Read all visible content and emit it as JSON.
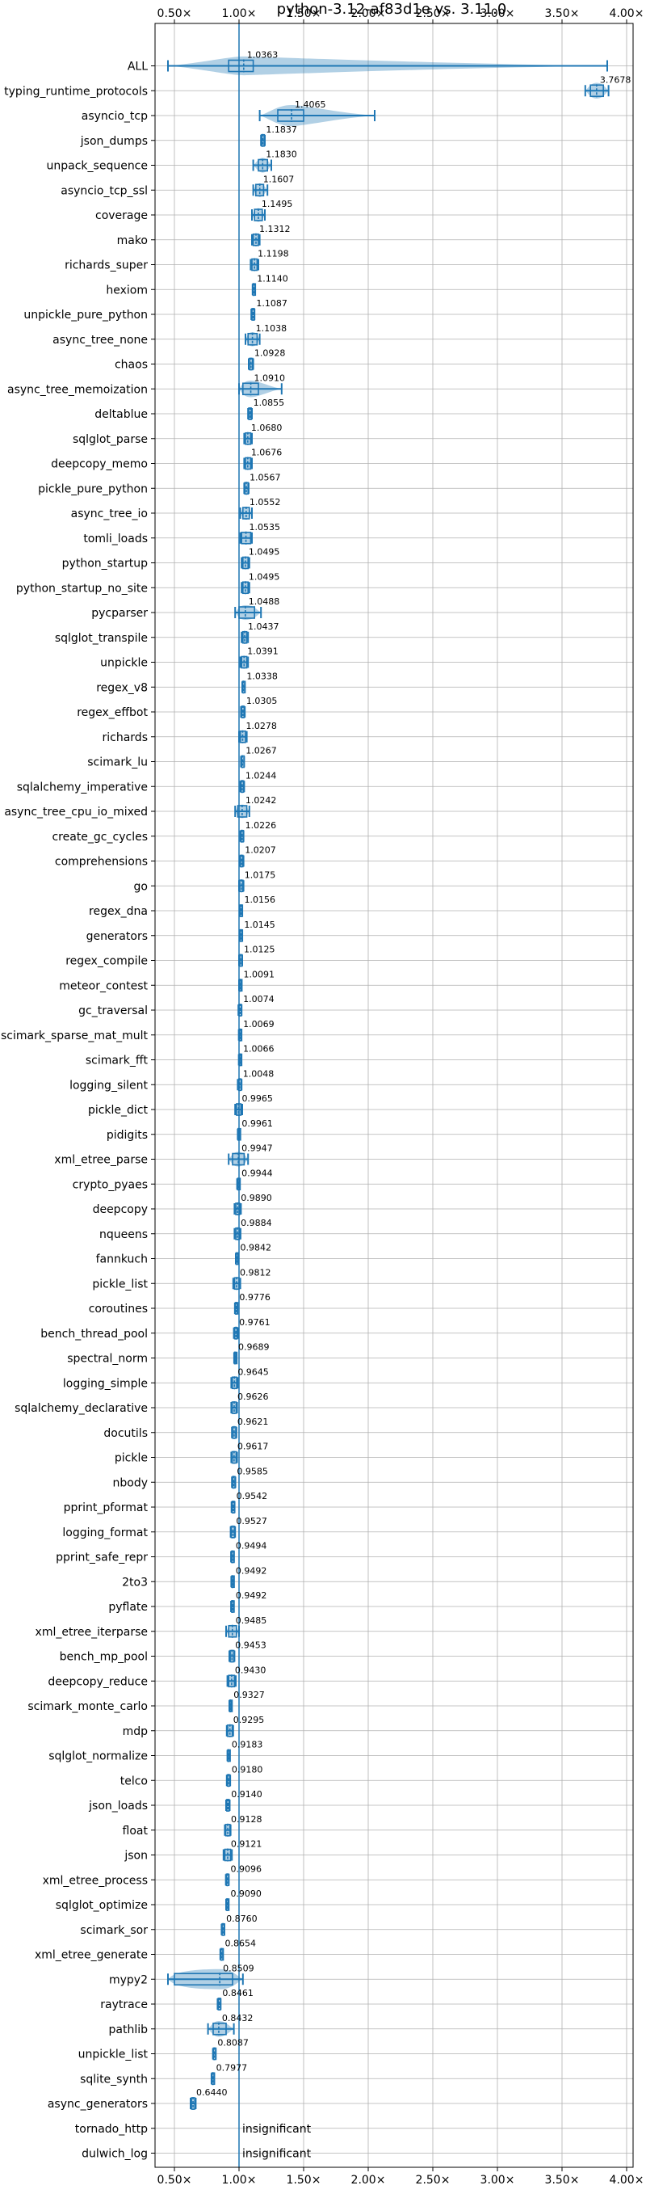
{
  "chart_data": {
    "type": "violin",
    "title": "python-3.12-af83d1e vs. 3.11.0",
    "xlabel": "",
    "ylabel": "",
    "xlim": [
      0.35,
      4.05
    ],
    "xticks": [
      0.5,
      1.0,
      1.5,
      2.0,
      2.5,
      3.0,
      3.5,
      4.0
    ],
    "xtick_labels": [
      "0.50×",
      "1.00×",
      "1.50×",
      "2.00×",
      "2.50×",
      "3.00×",
      "3.50×",
      "4.00×"
    ],
    "reference_line": 1.0,
    "grid": true,
    "insignificant_text": "insignificant",
    "benchmarks": [
      {
        "name": "ALL",
        "label": "1.0363",
        "value": 1.0363,
        "lo": 0.45,
        "hi": 3.85,
        "q1": 0.92,
        "q3": 1.11,
        "spread": 0.18
      },
      {
        "name": "typing_runtime_protocols",
        "label": "3.7678",
        "value": 3.7678,
        "lo": 3.68,
        "hi": 3.86,
        "q1": 3.72,
        "q3": 3.82,
        "spread": 0.1
      },
      {
        "name": "asyncio_tcp",
        "label": "1.4065",
        "value": 1.4065,
        "lo": 1.16,
        "hi": 2.05,
        "q1": 1.3,
        "q3": 1.5,
        "spread": 0.28
      },
      {
        "name": "json_dumps",
        "label": "1.1837",
        "value": 1.1837,
        "lo": 1.17,
        "hi": 1.2,
        "q1": 1.175,
        "q3": 1.195,
        "spread": 0.02
      },
      {
        "name": "unpack_sequence",
        "label": "1.1830",
        "value": 1.183,
        "lo": 1.11,
        "hi": 1.25,
        "q1": 1.15,
        "q3": 1.22,
        "spread": 0.08
      },
      {
        "name": "asyncio_tcp_ssl",
        "label": "1.1607",
        "value": 1.1607,
        "lo": 1.11,
        "hi": 1.22,
        "q1": 1.13,
        "q3": 1.19,
        "spread": 0.06
      },
      {
        "name": "coverage",
        "label": "1.1495",
        "value": 1.1495,
        "lo": 1.1,
        "hi": 1.2,
        "q1": 1.12,
        "q3": 1.18,
        "spread": 0.06
      },
      {
        "name": "mako",
        "label": "1.1312",
        "value": 1.1312,
        "lo": 1.1,
        "hi": 1.16,
        "q1": 1.11,
        "q3": 1.15,
        "spread": 0.04
      },
      {
        "name": "richards_super",
        "label": "1.1198",
        "value": 1.1198,
        "lo": 1.09,
        "hi": 1.15,
        "q1": 1.1,
        "q3": 1.14,
        "spread": 0.04
      },
      {
        "name": "hexiom",
        "label": "1.1140",
        "value": 1.114,
        "lo": 1.105,
        "hi": 1.125,
        "q1": 1.108,
        "q3": 1.12,
        "spread": 0.015
      },
      {
        "name": "unpickle_pure_python",
        "label": "1.1087",
        "value": 1.1087,
        "lo": 1.095,
        "hi": 1.12,
        "q1": 1.1,
        "q3": 1.117,
        "spread": 0.02
      },
      {
        "name": "async_tree_none",
        "label": "1.1038",
        "value": 1.1038,
        "lo": 1.05,
        "hi": 1.16,
        "q1": 1.07,
        "q3": 1.14,
        "spread": 0.07
      },
      {
        "name": "chaos",
        "label": "1.0928",
        "value": 1.0928,
        "lo": 1.075,
        "hi": 1.11,
        "q1": 1.08,
        "q3": 1.105,
        "spread": 0.025
      },
      {
        "name": "async_tree_memoization",
        "label": "1.0910",
        "value": 1.091,
        "lo": 1.0,
        "hi": 1.33,
        "q1": 1.03,
        "q3": 1.15,
        "spread": 0.12
      },
      {
        "name": "deltablue",
        "label": "1.0855",
        "value": 1.0855,
        "lo": 1.07,
        "hi": 1.1,
        "q1": 1.075,
        "q3": 1.095,
        "spread": 0.02
      },
      {
        "name": "sqlglot_parse",
        "label": "1.0680",
        "value": 1.068,
        "lo": 1.04,
        "hi": 1.1,
        "q1": 1.05,
        "q3": 1.09,
        "spread": 0.04
      },
      {
        "name": "deepcopy_memo",
        "label": "1.0676",
        "value": 1.0676,
        "lo": 1.04,
        "hi": 1.1,
        "q1": 1.05,
        "q3": 1.09,
        "spread": 0.04
      },
      {
        "name": "pickle_pure_python",
        "label": "1.0567",
        "value": 1.0567,
        "lo": 1.04,
        "hi": 1.075,
        "q1": 1.045,
        "q3": 1.07,
        "spread": 0.025
      },
      {
        "name": "async_tree_io",
        "label": "1.0552",
        "value": 1.0552,
        "lo": 1.01,
        "hi": 1.1,
        "q1": 1.03,
        "q3": 1.08,
        "spread": 0.05
      },
      {
        "name": "tomli_loads",
        "label": "1.0535",
        "value": 1.0535,
        "lo": 1.01,
        "hi": 1.1,
        "q1": 1.02,
        "q3": 1.09,
        "spread": 0.05
      },
      {
        "name": "python_startup",
        "label": "1.0495",
        "value": 1.0495,
        "lo": 1.02,
        "hi": 1.08,
        "q1": 1.03,
        "q3": 1.07,
        "spread": 0.04
      },
      {
        "name": "python_startup_no_site",
        "label": "1.0495",
        "value": 1.0495,
        "lo": 1.02,
        "hi": 1.08,
        "q1": 1.03,
        "q3": 1.07,
        "spread": 0.04
      },
      {
        "name": "pycparser",
        "label": "1.0488",
        "value": 1.0488,
        "lo": 0.97,
        "hi": 1.17,
        "q1": 1.0,
        "q3": 1.12,
        "spread": 0.08
      },
      {
        "name": "sqlglot_transpile",
        "label": "1.0437",
        "value": 1.0437,
        "lo": 1.02,
        "hi": 1.07,
        "q1": 1.03,
        "q3": 1.06,
        "spread": 0.03
      },
      {
        "name": "unpickle",
        "label": "1.0391",
        "value": 1.0391,
        "lo": 1.01,
        "hi": 1.07,
        "q1": 1.02,
        "q3": 1.06,
        "spread": 0.035
      },
      {
        "name": "regex_v8",
        "label": "1.0338",
        "value": 1.0338,
        "lo": 1.025,
        "hi": 1.045,
        "q1": 1.028,
        "q3": 1.04,
        "spread": 0.01
      },
      {
        "name": "regex_effbot",
        "label": "1.0305",
        "value": 1.0305,
        "lo": 1.015,
        "hi": 1.045,
        "q1": 1.02,
        "q3": 1.04,
        "spread": 0.02
      },
      {
        "name": "richards",
        "label": "1.0278",
        "value": 1.0278,
        "lo": 1.0,
        "hi": 1.06,
        "q1": 1.01,
        "q3": 1.05,
        "spread": 0.035
      },
      {
        "name": "scimark_lu",
        "label": "1.0267",
        "value": 1.0267,
        "lo": 1.015,
        "hi": 1.04,
        "q1": 1.02,
        "q3": 1.035,
        "spread": 0.015
      },
      {
        "name": "sqlalchemy_imperative",
        "label": "1.0244",
        "value": 1.0244,
        "lo": 1.01,
        "hi": 1.04,
        "q1": 1.015,
        "q3": 1.035,
        "spread": 0.015
      },
      {
        "name": "async_tree_cpu_io_mixed",
        "label": "1.0242",
        "value": 1.0242,
        "lo": 0.97,
        "hi": 1.08,
        "q1": 0.99,
        "q3": 1.06,
        "spread": 0.06
      },
      {
        "name": "create_gc_cycles",
        "label": "1.0226",
        "value": 1.0226,
        "lo": 1.01,
        "hi": 1.035,
        "q1": 1.015,
        "q3": 1.03,
        "spread": 0.015
      },
      {
        "name": "comprehensions",
        "label": "1.0207",
        "value": 1.0207,
        "lo": 1.005,
        "hi": 1.035,
        "q1": 1.01,
        "q3": 1.03,
        "spread": 0.015
      },
      {
        "name": "go",
        "label": "1.0175",
        "value": 1.0175,
        "lo": 1.0,
        "hi": 1.035,
        "q1": 1.005,
        "q3": 1.03,
        "spread": 0.02
      },
      {
        "name": "regex_dna",
        "label": "1.0156",
        "value": 1.0156,
        "lo": 1.005,
        "hi": 1.025,
        "q1": 1.008,
        "q3": 1.022,
        "spread": 0.01
      },
      {
        "name": "generators",
        "label": "1.0145",
        "value": 1.0145,
        "lo": 1.005,
        "hi": 1.025,
        "q1": 1.008,
        "q3": 1.02,
        "spread": 0.01
      },
      {
        "name": "regex_compile",
        "label": "1.0125",
        "value": 1.0125,
        "lo": 1.0,
        "hi": 1.025,
        "q1": 1.005,
        "q3": 1.02,
        "spread": 0.012
      },
      {
        "name": "meteor_contest",
        "label": "1.0091",
        "value": 1.0091,
        "lo": 1.0,
        "hi": 1.018,
        "q1": 1.004,
        "q3": 1.014,
        "spread": 0.008
      },
      {
        "name": "gc_traversal",
        "label": "1.0074",
        "value": 1.0074,
        "lo": 0.995,
        "hi": 1.02,
        "q1": 1.0,
        "q3": 1.015,
        "spread": 0.012
      },
      {
        "name": "scimark_sparse_mat_mult",
        "label": "1.0069",
        "value": 1.0069,
        "lo": 0.998,
        "hi": 1.016,
        "q1": 1.002,
        "q3": 1.012,
        "spread": 0.008
      },
      {
        "name": "scimark_fft",
        "label": "1.0066",
        "value": 1.0066,
        "lo": 0.998,
        "hi": 1.015,
        "q1": 1.002,
        "q3": 1.012,
        "spread": 0.008
      },
      {
        "name": "logging_silent",
        "label": "1.0048",
        "value": 1.0048,
        "lo": 0.99,
        "hi": 1.02,
        "q1": 0.998,
        "q3": 1.012,
        "spread": 0.012
      },
      {
        "name": "pickle_dict",
        "label": "0.9965",
        "value": 0.9965,
        "lo": 0.97,
        "hi": 1.025,
        "q1": 0.98,
        "q3": 1.015,
        "spread": 0.025
      },
      {
        "name": "pidigits",
        "label": "0.9961",
        "value": 0.9961,
        "lo": 0.99,
        "hi": 1.003,
        "q1": 0.993,
        "q3": 1.0,
        "spread": 0.005
      },
      {
        "name": "xml_etree_parse",
        "label": "0.9947",
        "value": 0.9947,
        "lo": 0.92,
        "hi": 1.07,
        "q1": 0.95,
        "q3": 1.04,
        "spread": 0.08
      },
      {
        "name": "crypto_pyaes",
        "label": "0.9944",
        "value": 0.9944,
        "lo": 0.985,
        "hi": 1.005,
        "q1": 0.99,
        "q3": 1.0,
        "spread": 0.008
      },
      {
        "name": "deepcopy",
        "label": "0.9890",
        "value": 0.989,
        "lo": 0.965,
        "hi": 1.015,
        "q1": 0.975,
        "q3": 1.005,
        "spread": 0.02
      },
      {
        "name": "nqueens",
        "label": "0.9884",
        "value": 0.9884,
        "lo": 0.965,
        "hi": 1.012,
        "q1": 0.975,
        "q3": 1.003,
        "spread": 0.02
      },
      {
        "name": "fannkuch",
        "label": "0.9842",
        "value": 0.9842,
        "lo": 0.975,
        "hi": 0.993,
        "q1": 0.978,
        "q3": 0.99,
        "spread": 0.008
      },
      {
        "name": "pickle_list",
        "label": "0.9812",
        "value": 0.9812,
        "lo": 0.955,
        "hi": 1.01,
        "q1": 0.965,
        "q3": 1.0,
        "spread": 0.025
      },
      {
        "name": "coroutines",
        "label": "0.9776",
        "value": 0.9776,
        "lo": 0.968,
        "hi": 0.988,
        "q1": 0.972,
        "q3": 0.984,
        "spread": 0.008
      },
      {
        "name": "bench_thread_pool",
        "label": "0.9761",
        "value": 0.9761,
        "lo": 0.96,
        "hi": 0.992,
        "q1": 0.966,
        "q3": 0.986,
        "spread": 0.015
      },
      {
        "name": "spectral_norm",
        "label": "0.9689",
        "value": 0.9689,
        "lo": 0.962,
        "hi": 0.976,
        "q1": 0.965,
        "q3": 0.973,
        "spread": 0.006
      },
      {
        "name": "logging_simple",
        "label": "0.9645",
        "value": 0.9645,
        "lo": 0.94,
        "hi": 0.99,
        "q1": 0.948,
        "q3": 0.982,
        "spread": 0.025
      },
      {
        "name": "sqlalchemy_declarative",
        "label": "0.9626",
        "value": 0.9626,
        "lo": 0.94,
        "hi": 0.985,
        "q1": 0.947,
        "q3": 0.978,
        "spread": 0.02
      },
      {
        "name": "docutils",
        "label": "0.9621",
        "value": 0.9621,
        "lo": 0.945,
        "hi": 0.98,
        "q1": 0.95,
        "q3": 0.975,
        "spread": 0.015
      },
      {
        "name": "pickle",
        "label": "0.9617",
        "value": 0.9617,
        "lo": 0.94,
        "hi": 0.985,
        "q1": 0.947,
        "q3": 0.978,
        "spread": 0.02
      },
      {
        "name": "nbody",
        "label": "0.9585",
        "value": 0.9585,
        "lo": 0.945,
        "hi": 0.972,
        "q1": 0.95,
        "q3": 0.967,
        "spread": 0.012
      },
      {
        "name": "pprint_pformat",
        "label": "0.9542",
        "value": 0.9542,
        "lo": 0.942,
        "hi": 0.966,
        "q1": 0.947,
        "q3": 0.962,
        "spread": 0.01
      },
      {
        "name": "logging_format",
        "label": "0.9527",
        "value": 0.9527,
        "lo": 0.935,
        "hi": 0.97,
        "q1": 0.94,
        "q3": 0.965,
        "spread": 0.015
      },
      {
        "name": "pprint_safe_repr",
        "label": "0.9494",
        "value": 0.9494,
        "lo": 0.938,
        "hi": 0.961,
        "q1": 0.943,
        "q3": 0.957,
        "spread": 0.01
      },
      {
        "name": "2to3",
        "label": "0.9492",
        "value": 0.9492,
        "lo": 0.94,
        "hi": 0.958,
        "q1": 0.944,
        "q3": 0.955,
        "spread": 0.008
      },
      {
        "name": "pyflate",
        "label": "0.9492",
        "value": 0.9492,
        "lo": 0.938,
        "hi": 0.96,
        "q1": 0.943,
        "q3": 0.956,
        "spread": 0.01
      },
      {
        "name": "xml_etree_iterparse",
        "label": "0.9485",
        "value": 0.9485,
        "lo": 0.9,
        "hi": 1.0,
        "q1": 0.92,
        "q3": 0.98,
        "spread": 0.05
      },
      {
        "name": "bench_mp_pool",
        "label": "0.9453",
        "value": 0.9453,
        "lo": 0.925,
        "hi": 0.965,
        "q1": 0.932,
        "q3": 0.96,
        "spread": 0.02
      },
      {
        "name": "deepcopy_reduce",
        "label": "0.9430",
        "value": 0.943,
        "lo": 0.91,
        "hi": 0.975,
        "q1": 0.92,
        "q3": 0.965,
        "spread": 0.03
      },
      {
        "name": "scimark_monte_carlo",
        "label": "0.9327",
        "value": 0.9327,
        "lo": 0.925,
        "hi": 0.94,
        "q1": 0.928,
        "q3": 0.937,
        "spread": 0.006
      },
      {
        "name": "mdp",
        "label": "0.9295",
        "value": 0.9295,
        "lo": 0.905,
        "hi": 0.955,
        "q1": 0.912,
        "q3": 0.948,
        "spread": 0.025
      },
      {
        "name": "sqlglot_normalize",
        "label": "0.9183",
        "value": 0.9183,
        "lo": 0.91,
        "hi": 0.927,
        "q1": 0.913,
        "q3": 0.924,
        "spread": 0.008
      },
      {
        "name": "telco",
        "label": "0.9180",
        "value": 0.918,
        "lo": 0.905,
        "hi": 0.932,
        "q1": 0.91,
        "q3": 0.927,
        "spread": 0.012
      },
      {
        "name": "json_loads",
        "label": "0.9140",
        "value": 0.914,
        "lo": 0.9,
        "hi": 0.928,
        "q1": 0.905,
        "q3": 0.923,
        "spread": 0.012
      },
      {
        "name": "float",
        "label": "0.9128",
        "value": 0.9128,
        "lo": 0.89,
        "hi": 0.935,
        "q1": 0.897,
        "q3": 0.93,
        "spread": 0.02
      },
      {
        "name": "json",
        "label": "0.9121",
        "value": 0.9121,
        "lo": 0.88,
        "hi": 0.945,
        "q1": 0.89,
        "q3": 0.935,
        "spread": 0.03
      },
      {
        "name": "xml_etree_process",
        "label": "0.9096",
        "value": 0.9096,
        "lo": 0.898,
        "hi": 0.921,
        "q1": 0.902,
        "q3": 0.917,
        "spread": 0.01
      },
      {
        "name": "sqlglot_optimize",
        "label": "0.9090",
        "value": 0.909,
        "lo": 0.9,
        "hi": 0.918,
        "q1": 0.903,
        "q3": 0.915,
        "spread": 0.007
      },
      {
        "name": "scimark_sor",
        "label": "0.8760",
        "value": 0.876,
        "lo": 0.865,
        "hi": 0.887,
        "q1": 0.869,
        "q3": 0.883,
        "spread": 0.008
      },
      {
        "name": "xml_etree_generate",
        "label": "0.8654",
        "value": 0.8654,
        "lo": 0.855,
        "hi": 0.876,
        "q1": 0.859,
        "q3": 0.872,
        "spread": 0.008
      },
      {
        "name": "mypy2",
        "label": "0.8509",
        "value": 0.8509,
        "lo": 0.45,
        "hi": 1.03,
        "q1": 0.5,
        "q3": 0.95,
        "spread": 0.22
      },
      {
        "name": "raytrace",
        "label": "0.8461",
        "value": 0.8461,
        "lo": 0.834,
        "hi": 0.858,
        "q1": 0.839,
        "q3": 0.854,
        "spread": 0.01
      },
      {
        "name": "pathlib",
        "label": "0.8432",
        "value": 0.8432,
        "lo": 0.76,
        "hi": 0.96,
        "q1": 0.8,
        "q3": 0.9,
        "spread": 0.1
      },
      {
        "name": "unpickle_list",
        "label": "0.8087",
        "value": 0.8087,
        "lo": 0.798,
        "hi": 0.82,
        "q1": 0.802,
        "q3": 0.816,
        "spread": 0.008
      },
      {
        "name": "sqlite_synth",
        "label": "0.7977",
        "value": 0.7977,
        "lo": 0.787,
        "hi": 0.808,
        "q1": 0.791,
        "q3": 0.804,
        "spread": 0.008
      },
      {
        "name": "async_generators",
        "label": "0.6440",
        "value": 0.644,
        "lo": 0.625,
        "hi": 0.665,
        "q1": 0.632,
        "q3": 0.658,
        "spread": 0.015
      },
      {
        "name": "tornado_http",
        "label": "",
        "value": null,
        "insignificant": true
      },
      {
        "name": "dulwich_log",
        "label": "",
        "value": null,
        "insignificant": true
      }
    ]
  }
}
